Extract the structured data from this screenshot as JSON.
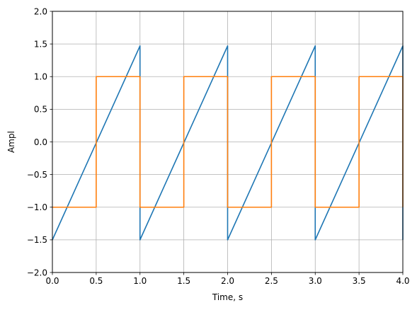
{
  "chart_data": {
    "type": "line",
    "xlabel": "Time, s",
    "ylabel": "Ampl",
    "xlim": [
      0.0,
      4.0
    ],
    "ylim": [
      -2.0,
      2.0
    ],
    "x_ticks": [
      0.0,
      0.5,
      1.0,
      1.5,
      2.0,
      2.5,
      3.0,
      3.5,
      4.0
    ],
    "x_tick_labels": [
      "0.0",
      "0.5",
      "1.0",
      "1.5",
      "2.0",
      "2.5",
      "3.0",
      "3.5",
      "4.0"
    ],
    "y_ticks": [
      -2.0,
      -1.5,
      -1.0,
      -0.5,
      0.0,
      0.5,
      1.0,
      1.5,
      2.0
    ],
    "y_tick_labels": [
      "−2.0",
      "−1.5",
      "−1.0",
      "−0.5",
      "0.0",
      "0.5",
      "1.0",
      "1.5",
      "2.0"
    ],
    "grid": true,
    "series": [
      {
        "color": "#1f77b4",
        "x": [
          0.0,
          1.0,
          1.0,
          2.0,
          2.0,
          3.0,
          3.0,
          4.0,
          4.0
        ],
        "y": [
          -1.5,
          1.47,
          -1.5,
          1.47,
          -1.5,
          1.47,
          -1.5,
          1.47,
          -1.5
        ]
      },
      {
        "color": "#ff7f0e",
        "x": [
          0.0,
          0.5,
          0.5,
          1.0,
          1.0,
          1.5,
          1.5,
          2.0,
          2.0,
          2.5,
          2.5,
          3.0,
          3.0,
          3.5,
          3.5,
          4.0,
          4.0
        ],
        "y": [
          -1.0,
          -1.0,
          1.0,
          1.0,
          -1.0,
          -1.0,
          1.0,
          1.0,
          -1.0,
          -1.0,
          1.0,
          1.0,
          -1.0,
          -1.0,
          1.0,
          1.0,
          -1.0
        ]
      }
    ]
  }
}
